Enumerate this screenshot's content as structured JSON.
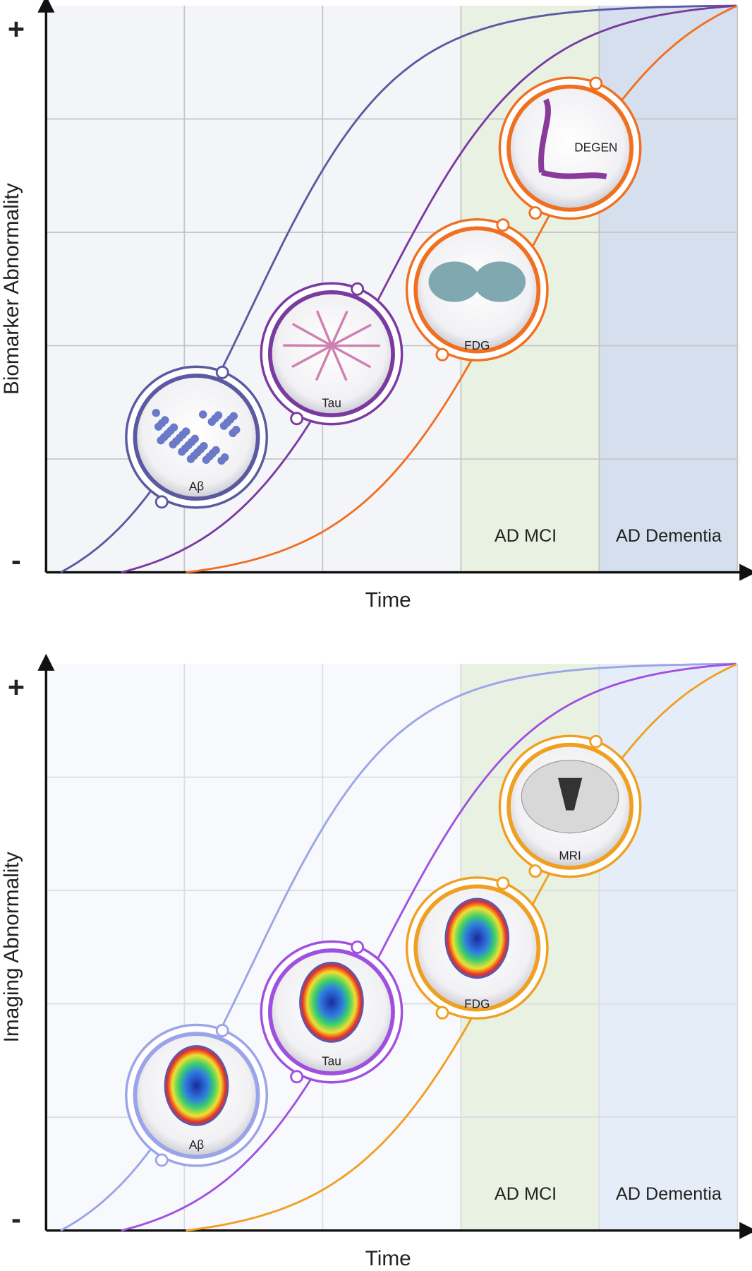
{
  "panels": [
    {
      "y_label": "Biomarker Abnormality",
      "x_label": "Time",
      "axis_top": "+",
      "axis_bottom": "-",
      "stages": [
        "AD MCI",
        "AD Dementia"
      ],
      "markers": [
        "Aβ",
        "Tau",
        "FDG",
        "DEGEN"
      ]
    },
    {
      "y_label": "Imaging Abnormality",
      "x_label": "Time",
      "axis_top": "+",
      "axis_bottom": "-",
      "stages": [
        "AD MCI",
        "AD Dementia"
      ],
      "markers": [
        "Aβ",
        "Tau",
        "FDG",
        "MRI"
      ]
    }
  ]
}
